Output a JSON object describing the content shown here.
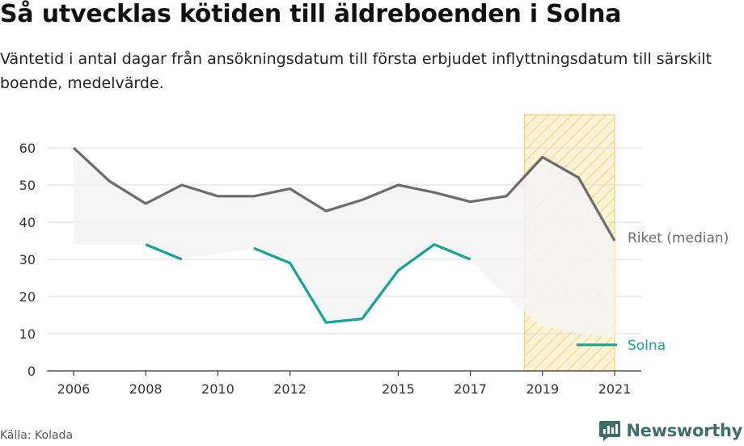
{
  "title": "Så utvecklas kötiden till äldreboenden i Solna",
  "subtitle": "Väntetid i antal dagar från ansökningsdatum till första erbjudet inflyttningsdatum till särskilt boende, medelvärde.",
  "source": "Källa: Kolada",
  "brand": {
    "name": "Newsworthy",
    "icon": "newsworthy-chart-logo-icon",
    "color": "#3c6e6a"
  },
  "colors": {
    "riket": "#6d6a72",
    "solna": "#13a39a",
    "band": "#f3f3f3",
    "highlight_fill": "#fdf3d8",
    "highlight_stroke": "#f5cf6b",
    "grid": "#d9d9d9",
    "axis": "#333333"
  },
  "chart_data": {
    "type": "line",
    "x": [
      2006,
      2007,
      2008,
      2009,
      2010,
      2011,
      2012,
      2013,
      2014,
      2015,
      2016,
      2017,
      2018,
      2019,
      2020,
      2021
    ],
    "x_tick_labels": [
      "2006",
      "2008",
      "2010",
      "2012",
      "2015",
      "2017",
      "2019",
      "2021"
    ],
    "y_ticks": [
      0,
      10,
      20,
      30,
      40,
      50,
      60
    ],
    "ylim": [
      0,
      62
    ],
    "xlim": [
      2006,
      2021
    ],
    "grid": true,
    "highlight_range": [
      2018.5,
      2021
    ],
    "series": [
      {
        "name": "Riket (median)",
        "key": "riket",
        "values": [
          60,
          51,
          45,
          50,
          47,
          47,
          49,
          43,
          46,
          50,
          48,
          45.5,
          47,
          57.5,
          52,
          35
        ]
      },
      {
        "name": "Solna",
        "key": "solna",
        "values": [
          null,
          null,
          34,
          30,
          null,
          33,
          29,
          13,
          14,
          27,
          34,
          30,
          null,
          null,
          null,
          null
        ]
      }
    ],
    "band": {
      "upper": [
        60,
        51,
        45,
        50,
        47,
        47,
        49,
        43,
        46,
        50,
        48,
        45.5,
        47,
        57.5,
        52,
        35
      ],
      "lower": [
        34,
        34,
        34,
        30,
        31.5,
        33,
        29,
        13,
        14,
        27,
        34,
        30,
        20,
        12,
        10,
        9
      ]
    }
  }
}
